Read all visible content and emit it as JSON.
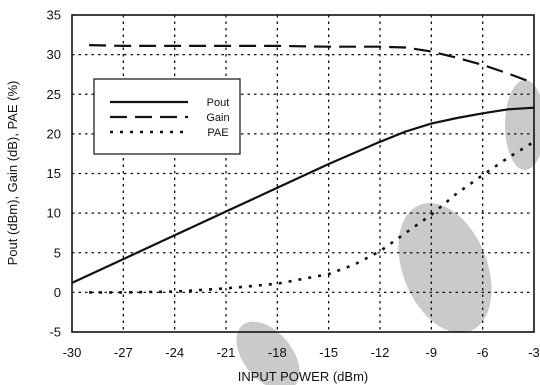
{
  "chart_data": {
    "type": "line",
    "xlabel": "INPUT POWER (dBm)",
    "ylabel": "Pout (dBm), Gain (dB), PAE (%)",
    "xlim": [
      -30,
      -3
    ],
    "ylim": [
      -5,
      35
    ],
    "x_ticks": [
      -30,
      -27,
      -24,
      -21,
      -18,
      -15,
      -12,
      -9,
      -6,
      -3
    ],
    "y_ticks": [
      -5,
      0,
      5,
      10,
      15,
      20,
      25,
      30,
      35
    ],
    "grid": true,
    "legend_position": "upper-left",
    "series": [
      {
        "name": "Pout",
        "style": "solid",
        "x": [
          -30,
          -27,
          -24,
          -21,
          -18,
          -15,
          -12,
          -10.5,
          -9,
          -7.5,
          -6,
          -4.5,
          -3
        ],
        "y": [
          1.2,
          4.2,
          7.2,
          10.2,
          13.2,
          16.2,
          19.0,
          20.3,
          21.3,
          22.0,
          22.6,
          23.1,
          23.3
        ]
      },
      {
        "name": "Gain",
        "style": "dashed",
        "x": [
          -29,
          -27,
          -24,
          -21,
          -18,
          -15,
          -12,
          -10.5,
          -9,
          -7.5,
          -6,
          -4.5,
          -3
        ],
        "y": [
          31.2,
          31.1,
          31.1,
          31.1,
          31.1,
          31.0,
          31.0,
          30.9,
          30.4,
          29.6,
          28.7,
          27.6,
          26.4
        ]
      },
      {
        "name": "PAE",
        "style": "dotted",
        "x": [
          -29,
          -27,
          -24,
          -21,
          -18,
          -15,
          -13.5,
          -12,
          -10.5,
          -9,
          -7.5,
          -6,
          -4.5,
          -3
        ],
        "y": [
          0.0,
          0.0,
          0.1,
          0.5,
          1.1,
          2.3,
          3.5,
          5.2,
          7.5,
          9.8,
          12.5,
          14.8,
          17.0,
          19.0
        ]
      }
    ],
    "colors": {
      "line": "#111111",
      "grid": "#111111",
      "background": "#ffffff",
      "watermark": "#bdbdbd"
    }
  }
}
